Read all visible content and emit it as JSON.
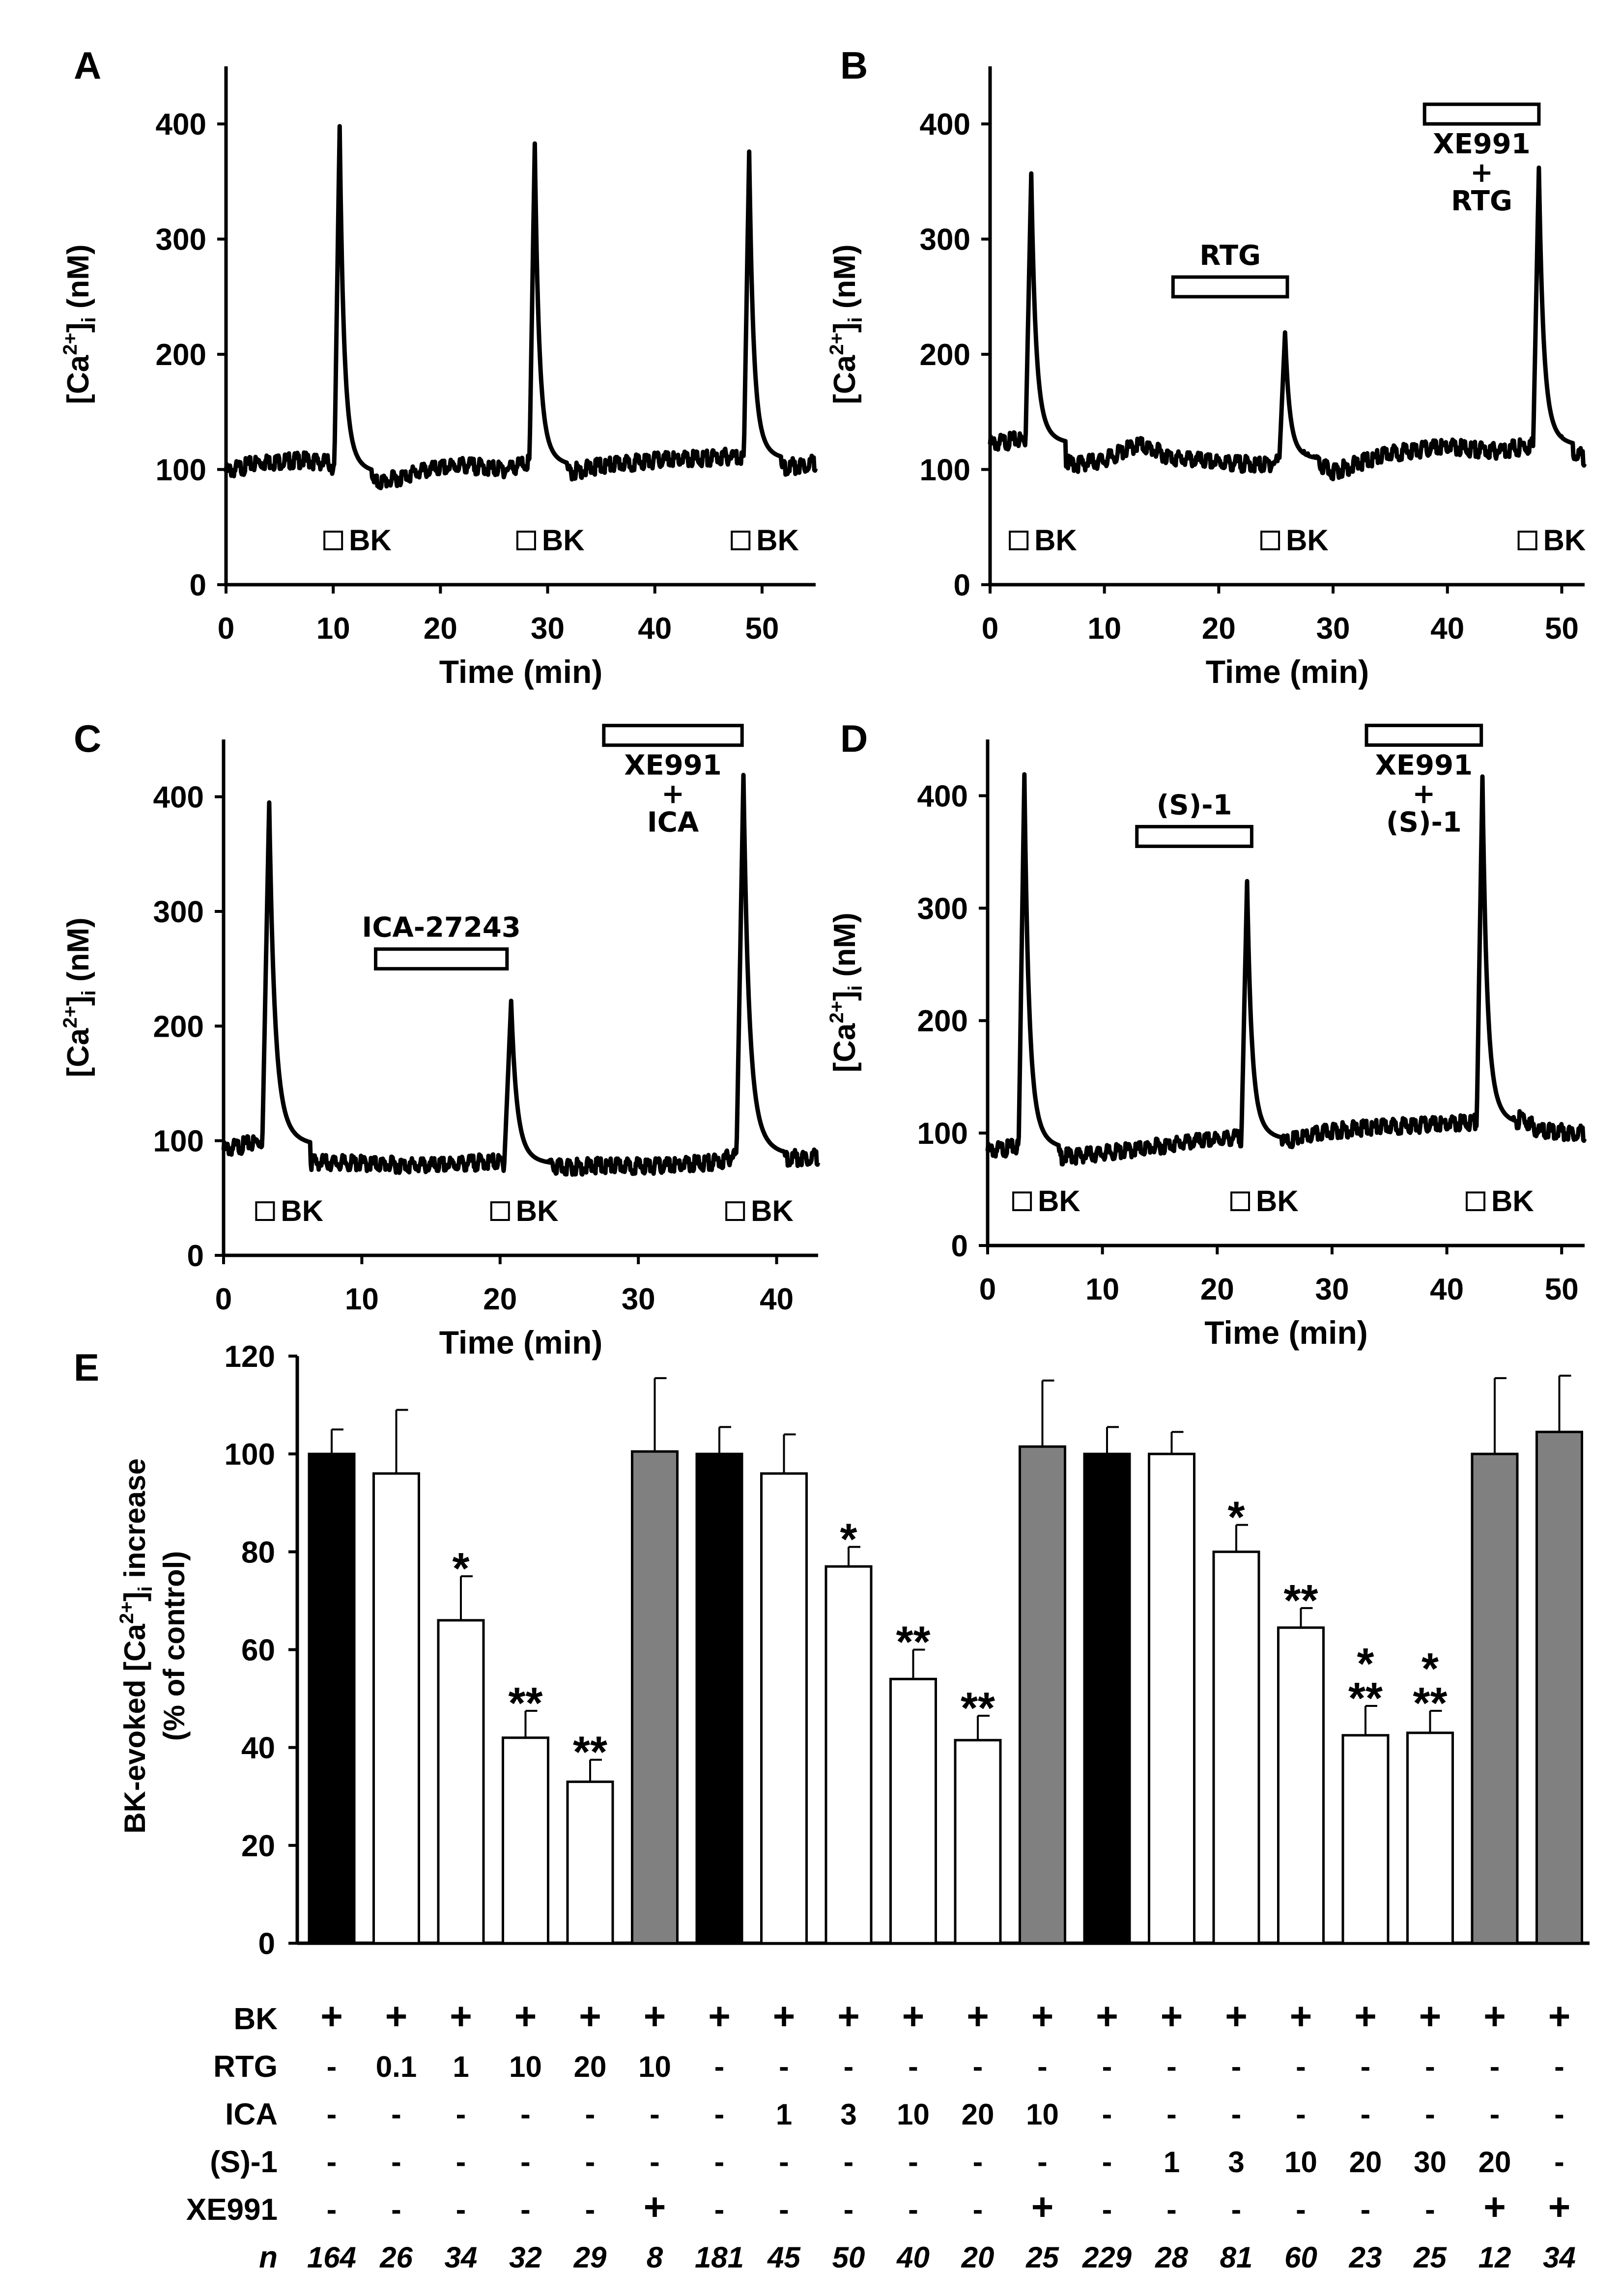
{
  "colors": {
    "control": "#000000",
    "drug": "#ffffff",
    "xe991": "#808080",
    "trace": "#000000",
    "axis": "#000000"
  },
  "chart_data": [
    {
      "panel": "A",
      "type": "line",
      "xlabel": "Time (min)",
      "ylabel_main": "[Ca",
      "ylabel_sup": "2+",
      "ylabel_close": "]",
      "ylabel_sub": "i",
      "ylabel_unit": " (nM)",
      "xlim": [
        0,
        55
      ],
      "ylim": [
        0,
        450
      ],
      "xticks": [
        0,
        10,
        20,
        30,
        40,
        50
      ],
      "yticks": [
        0,
        100,
        200,
        300,
        400
      ],
      "baseline": [
        [
          0,
          98
        ],
        [
          3,
          106
        ],
        [
          7,
          108
        ],
        [
          9.5,
          106
        ],
        [
          12,
          86
        ],
        [
          15,
          90
        ],
        [
          18,
          98
        ],
        [
          22,
          104
        ],
        [
          26,
          100
        ],
        [
          28,
          106
        ],
        [
          31,
          96
        ],
        [
          35,
          103
        ],
        [
          40,
          108
        ],
        [
          45,
          110
        ],
        [
          48,
          112
        ],
        [
          51,
          100
        ],
        [
          55,
          106
        ]
      ],
      "peaks": [
        {
          "t": 10.6,
          "v": 398
        },
        {
          "t": 28.8,
          "v": 383
        },
        {
          "t": 48.8,
          "v": 376
        }
      ],
      "stimuli": [
        {
          "t": 10,
          "label": "BK"
        },
        {
          "t": 28,
          "label": "BK"
        },
        {
          "t": 48,
          "label": "BK"
        }
      ],
      "bars": []
    },
    {
      "panel": "B",
      "type": "line",
      "xlabel": "Time (min)",
      "ylabel_main": "[Ca",
      "ylabel_sup": "2+",
      "ylabel_close": "]",
      "ylabel_sub": "i",
      "ylabel_unit": " (nM)",
      "xlim": [
        0,
        52
      ],
      "ylim": [
        0,
        450
      ],
      "xticks": [
        0,
        10,
        20,
        30,
        40,
        50
      ],
      "yticks": [
        0,
        100,
        200,
        300,
        400
      ],
      "baseline": [
        [
          0,
          122
        ],
        [
          2.5,
          126
        ],
        [
          5,
          118
        ],
        [
          7,
          104
        ],
        [
          10,
          108
        ],
        [
          13,
          122
        ],
        [
          16,
          110
        ],
        [
          20,
          106
        ],
        [
          24,
          104
        ],
        [
          27,
          112
        ],
        [
          30,
          98
        ],
        [
          35,
          114
        ],
        [
          40,
          120
        ],
        [
          44,
          116
        ],
        [
          47,
          120
        ],
        [
          50,
          122
        ],
        [
          52,
          110
        ]
      ],
      "peaks": [
        {
          "t": 3.6,
          "v": 357
        },
        {
          "t": 25.8,
          "v": 219
        },
        {
          "t": 48.0,
          "v": 362
        }
      ],
      "stimuli": [
        {
          "t": 2.5,
          "label": "BK"
        },
        {
          "t": 24.5,
          "label": "BK"
        },
        {
          "t": 47,
          "label": "BK"
        }
      ],
      "bars": [
        {
          "t0": 16,
          "t1": 26,
          "y": 250,
          "labels": [
            "RTG"
          ]
        },
        {
          "t0": 38,
          "t1": 48,
          "y": 400,
          "labels": [
            "XE991",
            "+",
            "RTG"
          ]
        }
      ]
    },
    {
      "panel": "C",
      "type": "line",
      "xlabel": "Time (min)",
      "ylabel_main": "[Ca",
      "ylabel_sup": "2+",
      "ylabel_close": "]",
      "ylabel_sub": "i",
      "ylabel_unit": " (nM)",
      "xlim": [
        0,
        43
      ],
      "ylim": [
        0,
        450
      ],
      "xticks": [
        0,
        10,
        20,
        30,
        40
      ],
      "yticks": [
        0,
        100,
        200,
        300,
        400
      ],
      "baseline": [
        [
          0,
          92
        ],
        [
          2.8,
          100
        ],
        [
          5,
          82
        ],
        [
          10,
          80
        ],
        [
          15,
          78
        ],
        [
          19.5,
          82
        ],
        [
          22.5,
          76
        ],
        [
          27,
          78
        ],
        [
          32,
          78
        ],
        [
          36,
          82
        ],
        [
          37,
          88
        ],
        [
          40,
          84
        ],
        [
          43,
          86
        ]
      ],
      "peaks": [
        {
          "t": 3.3,
          "v": 395
        },
        {
          "t": 20.8,
          "v": 222
        },
        {
          "t": 37.6,
          "v": 419
        }
      ],
      "stimuli": [
        {
          "t": 3,
          "label": "BK"
        },
        {
          "t": 20,
          "label": "BK"
        },
        {
          "t": 37,
          "label": "BK"
        }
      ],
      "bars": [
        {
          "t0": 11,
          "t1": 20.5,
          "y": 250,
          "labels": [
            "ICA-27243"
          ]
        },
        {
          "t0": 27.5,
          "t1": 37.5,
          "y": 445,
          "labels": [
            "XE991",
            "+",
            "ICA"
          ]
        }
      ]
    },
    {
      "panel": "D",
      "type": "line",
      "xlabel": "Time (min)",
      "ylabel_main": "[Ca",
      "ylabel_sup": "2+",
      "ylabel_close": "]",
      "ylabel_sub": "i",
      "ylabel_unit": " (nM)",
      "xlim": [
        0,
        52
      ],
      "ylim": [
        0,
        450
      ],
      "xticks": [
        0,
        10,
        20,
        30,
        40,
        50
      ],
      "yticks": [
        0,
        100,
        200,
        300,
        400
      ],
      "baseline": [
        [
          0,
          84
        ],
        [
          2.8,
          88
        ],
        [
          5,
          78
        ],
        [
          8,
          80
        ],
        [
          12,
          84
        ],
        [
          16,
          90
        ],
        [
          21.5,
          96
        ],
        [
          25,
          90
        ],
        [
          30,
          102
        ],
        [
          35,
          106
        ],
        [
          40,
          108
        ],
        [
          42.5,
          110
        ],
        [
          45,
          100
        ],
        [
          46.5,
          114
        ],
        [
          48,
          102
        ],
        [
          52,
          100
        ]
      ],
      "peaks": [
        {
          "t": 3.2,
          "v": 419
        },
        {
          "t": 22.6,
          "v": 324
        },
        {
          "t": 43.1,
          "v": 417
        }
      ],
      "stimuli": [
        {
          "t": 3,
          "label": "BK"
        },
        {
          "t": 22,
          "label": "BK"
        },
        {
          "t": 42.5,
          "label": "BK"
        }
      ],
      "bars": [
        {
          "t0": 13,
          "t1": 23,
          "y": 355,
          "labels": [
            "(S)-1"
          ]
        },
        {
          "t0": 33,
          "t1": 43,
          "y": 445,
          "labels": [
            "XE991",
            "+",
            "(S)-1"
          ]
        }
      ]
    },
    {
      "panel": "E",
      "type": "bar",
      "ylabel": "BK-evoked [Ca2+]i increase (% of control)",
      "ylabel_line1": "BK-evoked [Ca",
      "ylabel_sup": "2+",
      "ylabel_close": "]",
      "ylabel_sub": "i",
      "ylabel_rest": " increase",
      "ylabel_line2": "(% of control)",
      "ylim": [
        0,
        120
      ],
      "yticks": [
        0,
        20,
        40,
        60,
        80,
        100,
        120
      ],
      "values": [
        100,
        96,
        66,
        42,
        33,
        100.5,
        100,
        96,
        77,
        54,
        41.5,
        101.5,
        100,
        100,
        80,
        64.5,
        42.5,
        43,
        100,
        104.5
      ],
      "errors": [
        5,
        13,
        9,
        5.5,
        4.5,
        15,
        5.5,
        8,
        4,
        6,
        5,
        13.5,
        5.5,
        4.5,
        5.5,
        4,
        6,
        4.5,
        15.5,
        11.5
      ],
      "fills": [
        "control",
        "drug",
        "drug",
        "drug",
        "drug",
        "xe991",
        "control",
        "drug",
        "drug",
        "drug",
        "drug",
        "xe991",
        "control",
        "drug",
        "drug",
        "drug",
        "drug",
        "drug",
        "xe991",
        "xe991"
      ],
      "significance": [
        "",
        "",
        "*",
        "**",
        "**",
        "",
        "",
        "",
        "*",
        "**",
        "**",
        "",
        "",
        "",
        "*",
        "**",
        "*\n**",
        "*\n**",
        "",
        ""
      ],
      "condition_rows": [
        {
          "label": "BK",
          "values": [
            "+",
            "+",
            "+",
            "+",
            "+",
            "+",
            "+",
            "+",
            "+",
            "+",
            "+",
            "+",
            "+",
            "+",
            "+",
            "+",
            "+",
            "+",
            "+",
            "+"
          ]
        },
        {
          "label": "RTG",
          "values": [
            "-",
            "0.1",
            "1",
            "10",
            "20",
            "10",
            "-",
            "-",
            "-",
            "-",
            "-",
            "-",
            "-",
            "-",
            "-",
            "-",
            "-",
            "-",
            "-",
            "-"
          ]
        },
        {
          "label": "ICA",
          "values": [
            "-",
            "-",
            "-",
            "-",
            "-",
            "-",
            "-",
            "1",
            "3",
            "10",
            "20",
            "10",
            "-",
            "-",
            "-",
            "-",
            "-",
            "-",
            "-",
            "-"
          ]
        },
        {
          "label": "(S)-1",
          "values": [
            "-",
            "-",
            "-",
            "-",
            "-",
            "-",
            "-",
            "-",
            "-",
            "-",
            "-",
            "-",
            "-",
            "1",
            "3",
            "10",
            "20",
            "30",
            "20",
            "-"
          ]
        },
        {
          "label": "XE991",
          "values": [
            "-",
            "-",
            "-",
            "-",
            "-",
            "+",
            "-",
            "-",
            "-",
            "-",
            "-",
            "+",
            "-",
            "-",
            "-",
            "-",
            "-",
            "-",
            "+",
            "+"
          ]
        }
      ],
      "n_row": {
        "label": "n",
        "values": [
          "164",
          "26",
          "34",
          "32",
          "29",
          "8",
          "181",
          "45",
          "50",
          "40",
          "20",
          "25",
          "229",
          "28",
          "81",
          "60",
          "23",
          "25",
          "12",
          "34"
        ]
      }
    }
  ]
}
